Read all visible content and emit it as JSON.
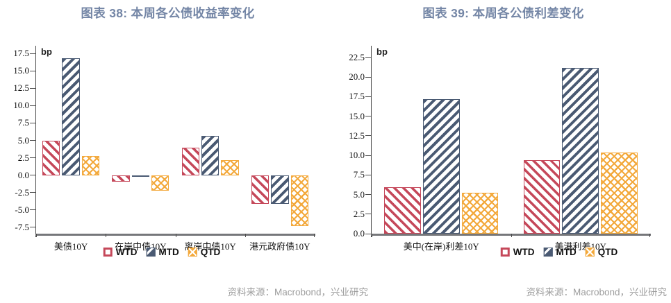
{
  "colors": {
    "title": "#7486a6",
    "wtd": "#c5485a",
    "mtd": "#4a5a73",
    "qtd": "#f3a93c",
    "x_axis_line": "#76777a",
    "y_axis_line": "#4a4a4a",
    "tick_text": "#111111",
    "source_text": "#9d9d9d"
  },
  "chart_data": [
    {
      "type": "bar",
      "title": "图表 38: 本周各公债收益率变化",
      "ylabel": "bp",
      "ylim": [
        -8.4,
        18.6
      ],
      "yticks": [
        17.5,
        15.0,
        12.5,
        10.0,
        7.5,
        5.0,
        2.5,
        0.0,
        -2.5,
        -5.0,
        -7.5
      ],
      "grid": false,
      "legend_position": "bottom",
      "categories": [
        "美债10Y",
        "在岸中债10Y",
        "离岸中债10Y",
        "港元政府债10Y"
      ],
      "series": [
        {
          "name": "WTD",
          "color": "#c5485a",
          "pattern": "diagonal-down",
          "values": [
            5.0,
            -0.9,
            4.0,
            -4.1
          ]
        },
        {
          "name": "MTD",
          "color": "#4a5a73",
          "pattern": "diagonal-up",
          "values": [
            16.8,
            -0.1,
            5.6,
            -4.1
          ]
        },
        {
          "name": "QTD",
          "color": "#f3a93c",
          "pattern": "crosshatch",
          "values": [
            2.8,
            -2.2,
            2.2,
            -7.3
          ]
        }
      ],
      "source": "资料来源：Macrobond，兴业研究"
    },
    {
      "type": "bar",
      "title": "图表 39: 本周各公债利差变化",
      "ylabel": "bp",
      "ylim": [
        0,
        24
      ],
      "yticks": [
        22.5,
        20.0,
        17.5,
        15.0,
        12.5,
        10.0,
        7.5,
        5.0,
        2.5,
        0.0
      ],
      "grid": false,
      "legend_position": "bottom",
      "categories": [
        "美中(在岸)利差10Y",
        "美港利差10Y"
      ],
      "series": [
        {
          "name": "WTD",
          "color": "#c5485a",
          "pattern": "diagonal-down",
          "values": [
            5.9,
            9.4
          ]
        },
        {
          "name": "MTD",
          "color": "#4a5a73",
          "pattern": "diagonal-up",
          "values": [
            17.2,
            21.2
          ]
        },
        {
          "name": "QTD",
          "color": "#f3a93c",
          "pattern": "crosshatch",
          "values": [
            5.2,
            10.4
          ]
        }
      ],
      "source": "资料来源：Macrobond，兴业研究"
    }
  ]
}
